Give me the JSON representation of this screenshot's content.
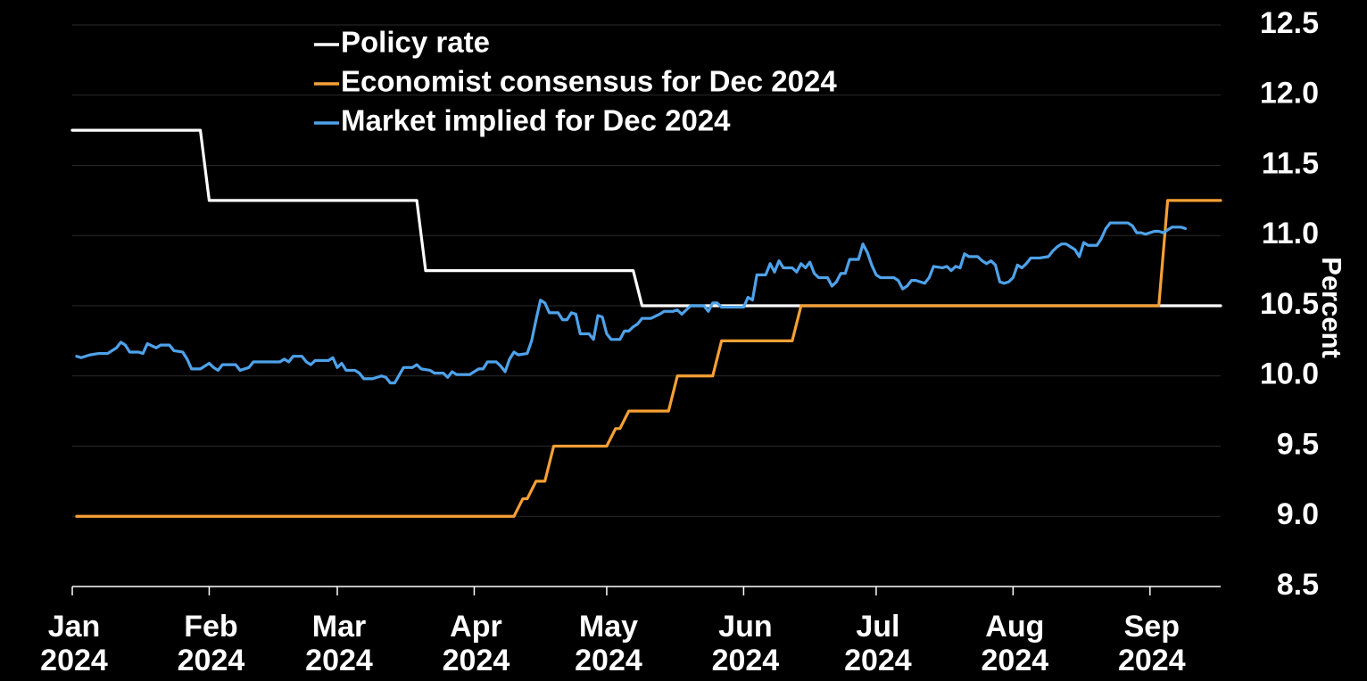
{
  "chart_data": {
    "type": "line",
    "title": "",
    "xlabel": "",
    "ylabel": "Percent",
    "ylim": [
      8.5,
      12.5
    ],
    "yticks": [
      "12.5",
      "12.0",
      "11.5",
      "11.0",
      "10.5",
      "10.0",
      "9.5",
      "9.0",
      "8.5"
    ],
    "ytick_values": [
      12.5,
      12.0,
      11.5,
      11.0,
      10.5,
      10.0,
      9.5,
      9.0,
      8.5
    ],
    "x_unit": "days since 2024-01-01",
    "xlim": [
      0,
      260
    ],
    "xticks": [
      {
        "month": "Jan",
        "year": "2024",
        "day": 0
      },
      {
        "month": "Feb",
        "year": "2024",
        "day": 31
      },
      {
        "month": "Mar",
        "year": "2024",
        "day": 60
      },
      {
        "month": "Apr",
        "year": "2024",
        "day": 91
      },
      {
        "month": "May",
        "year": "2024",
        "day": 121
      },
      {
        "month": "Jun",
        "year": "2024",
        "day": 152
      },
      {
        "month": "Jul",
        "year": "2024",
        "day": 182
      },
      {
        "month": "Aug",
        "year": "2024",
        "day": 213
      },
      {
        "month": "Sep",
        "year": "2024",
        "day": 244
      }
    ],
    "grid": true,
    "legend_position": "top-left",
    "series": [
      {
        "name": "Policy rate",
        "color": "#ffffff",
        "step": true,
        "points": [
          [
            0,
            11.75
          ],
          [
            31,
            11.25
          ],
          [
            80,
            10.75
          ],
          [
            129,
            10.5
          ],
          [
            260,
            10.5
          ]
        ]
      },
      {
        "name": "Economist consensus for Dec 2024",
        "color": "#f7a035",
        "step": true,
        "points": [
          [
            1,
            9.0
          ],
          [
            102,
            9.125
          ],
          [
            105,
            9.25
          ],
          [
            109,
            9.5
          ],
          [
            123,
            9.625
          ],
          [
            126,
            9.75
          ],
          [
            137,
            10.0
          ],
          [
            147,
            10.25
          ],
          [
            165,
            10.5
          ],
          [
            248,
            11.25
          ],
          [
            260,
            11.25
          ]
        ]
      },
      {
        "name": "Market implied for Dec 2024",
        "color": "#4ea2ea",
        "step": false,
        "points": [
          [
            1,
            10.14
          ],
          [
            2,
            10.13
          ],
          [
            4,
            10.15
          ],
          [
            6,
            10.16
          ],
          [
            8,
            10.16
          ],
          [
            10,
            10.2
          ],
          [
            11,
            10.24
          ],
          [
            12,
            10.22
          ],
          [
            13,
            10.17
          ],
          [
            15,
            10.17
          ],
          [
            16,
            10.16
          ],
          [
            17,
            10.23
          ],
          [
            19,
            10.2
          ],
          [
            20,
            10.22
          ],
          [
            22,
            10.22
          ],
          [
            23,
            10.18
          ],
          [
            25,
            10.17
          ],
          [
            26,
            10.12
          ],
          [
            27,
            10.05
          ],
          [
            29,
            10.05
          ],
          [
            31,
            10.09
          ],
          [
            32,
            10.06
          ],
          [
            33,
            10.04
          ],
          [
            34,
            10.08
          ],
          [
            37,
            10.08
          ],
          [
            38,
            10.04
          ],
          [
            40,
            10.06
          ],
          [
            41,
            10.1
          ],
          [
            44,
            10.1
          ],
          [
            47,
            10.1
          ],
          [
            48,
            10.12
          ],
          [
            49,
            10.1
          ],
          [
            50,
            10.14
          ],
          [
            52,
            10.14
          ],
          [
            53,
            10.1
          ],
          [
            54,
            10.08
          ],
          [
            55,
            10.11
          ],
          [
            58,
            10.11
          ],
          [
            59,
            10.13
          ],
          [
            60,
            10.06
          ],
          [
            61,
            10.09
          ],
          [
            62,
            10.04
          ],
          [
            64,
            10.04
          ],
          [
            65,
            10.02
          ],
          [
            66,
            9.98
          ],
          [
            68,
            9.98
          ],
          [
            70,
            10.0
          ],
          [
            71,
            9.99
          ],
          [
            72,
            9.95
          ],
          [
            73,
            9.95
          ],
          [
            75,
            10.06
          ],
          [
            77,
            10.06
          ],
          [
            78,
            10.08
          ],
          [
            79,
            10.05
          ],
          [
            81,
            10.04
          ],
          [
            82,
            10.02
          ],
          [
            84,
            10.02
          ],
          [
            85,
            9.99
          ],
          [
            86,
            10.03
          ],
          [
            87,
            10.01
          ],
          [
            90,
            10.01
          ],
          [
            91,
            10.03
          ],
          [
            92,
            10.05
          ],
          [
            93,
            10.05
          ],
          [
            94,
            10.1
          ],
          [
            96,
            10.1
          ],
          [
            97,
            10.07
          ],
          [
            98,
            10.03
          ],
          [
            99,
            10.12
          ],
          [
            100,
            10.17
          ],
          [
            101,
            10.15
          ],
          [
            103,
            10.16
          ],
          [
            104,
            10.25
          ],
          [
            105,
            10.4
          ],
          [
            106,
            10.54
          ],
          [
            107,
            10.52
          ],
          [
            108,
            10.45
          ],
          [
            110,
            10.45
          ],
          [
            111,
            10.4
          ],
          [
            112,
            10.4
          ],
          [
            113,
            10.45
          ],
          [
            114,
            10.44
          ],
          [
            115,
            10.3
          ],
          [
            117,
            10.3
          ],
          [
            118,
            10.26
          ],
          [
            119,
            10.43
          ],
          [
            120,
            10.42
          ],
          [
            121,
            10.3
          ],
          [
            122,
            10.26
          ],
          [
            124,
            10.26
          ],
          [
            125,
            10.32
          ],
          [
            126,
            10.32
          ],
          [
            127,
            10.35
          ],
          [
            128,
            10.37
          ],
          [
            129,
            10.41
          ],
          [
            131,
            10.41
          ],
          [
            133,
            10.44
          ],
          [
            134,
            10.46
          ],
          [
            136,
            10.46
          ],
          [
            137,
            10.47
          ],
          [
            138,
            10.44
          ],
          [
            140,
            10.5
          ],
          [
            143,
            10.5
          ],
          [
            144,
            10.46
          ],
          [
            145,
            10.52
          ],
          [
            146,
            10.52
          ],
          [
            147,
            10.49
          ],
          [
            152,
            10.49
          ],
          [
            153,
            10.56
          ],
          [
            154,
            10.54
          ],
          [
            155,
            10.72
          ],
          [
            157,
            10.72
          ],
          [
            158,
            10.8
          ],
          [
            159,
            10.74
          ],
          [
            160,
            10.82
          ],
          [
            161,
            10.77
          ],
          [
            163,
            10.77
          ],
          [
            164,
            10.74
          ],
          [
            165,
            10.8
          ],
          [
            166,
            10.77
          ],
          [
            167,
            10.81
          ],
          [
            168,
            10.73
          ],
          [
            169,
            10.7
          ],
          [
            171,
            10.7
          ],
          [
            172,
            10.64
          ],
          [
            173,
            10.67
          ],
          [
            174,
            10.73
          ],
          [
            175,
            10.73
          ],
          [
            176,
            10.83
          ],
          [
            178,
            10.83
          ],
          [
            179,
            10.94
          ],
          [
            180,
            10.88
          ],
          [
            181,
            10.79
          ],
          [
            182,
            10.72
          ],
          [
            183,
            10.7
          ],
          [
            186,
            10.7
          ],
          [
            187,
            10.68
          ],
          [
            188,
            10.62
          ],
          [
            189,
            10.64
          ],
          [
            190,
            10.68
          ],
          [
            191,
            10.68
          ],
          [
            193,
            10.66
          ],
          [
            194,
            10.7
          ],
          [
            195,
            10.78
          ],
          [
            197,
            10.77
          ],
          [
            198,
            10.78
          ],
          [
            199,
            10.75
          ],
          [
            200,
            10.78
          ],
          [
            201,
            10.77
          ],
          [
            202,
            10.87
          ],
          [
            203,
            10.85
          ],
          [
            205,
            10.85
          ],
          [
            206,
            10.82
          ],
          [
            207,
            10.8
          ],
          [
            208,
            10.82
          ],
          [
            209,
            10.79
          ],
          [
            210,
            10.67
          ],
          [
            211,
            10.66
          ],
          [
            212,
            10.67
          ],
          [
            213,
            10.7
          ],
          [
            214,
            10.79
          ],
          [
            215,
            10.77
          ],
          [
            216,
            10.8
          ],
          [
            217,
            10.84
          ],
          [
            219,
            10.84
          ],
          [
            221,
            10.85
          ],
          [
            222,
            10.89
          ],
          [
            223,
            10.92
          ],
          [
            224,
            10.94
          ],
          [
            225,
            10.94
          ],
          [
            226,
            10.92
          ],
          [
            227,
            10.9
          ],
          [
            228,
            10.85
          ],
          [
            229,
            10.95
          ],
          [
            230,
            10.93
          ],
          [
            231,
            10.93
          ],
          [
            232,
            10.93
          ],
          [
            233,
            10.98
          ],
          [
            234,
            11.05
          ],
          [
            235,
            11.09
          ],
          [
            239,
            11.09
          ],
          [
            240,
            11.07
          ],
          [
            241,
            11.02
          ],
          [
            242,
            11.02
          ],
          [
            243,
            11.01
          ],
          [
            245,
            11.03
          ],
          [
            246,
            11.03
          ],
          [
            247,
            11.02
          ],
          [
            248,
            11.04
          ],
          [
            249,
            11.06
          ],
          [
            251,
            11.06
          ],
          [
            252,
            11.05
          ]
        ]
      }
    ]
  }
}
